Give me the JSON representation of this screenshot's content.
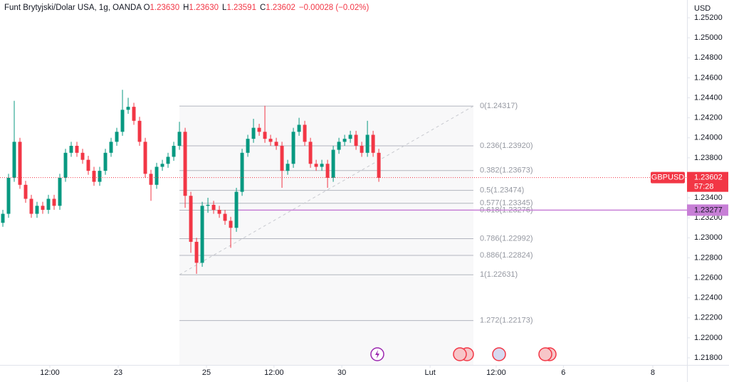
{
  "chart_data": {
    "type": "candlestick",
    "title": "Funt Brytyjski/Dolar USA, 1g, OANDA",
    "ohlc_header": [
      {
        "key": "O",
        "value": 1.2363,
        "label": "1.23630"
      },
      {
        "key": "H",
        "value": 1.2363,
        "label": "1.23630"
      },
      {
        "key": "L",
        "value": 1.23591,
        "label": "1.23591"
      },
      {
        "key": "C",
        "value": 1.23602,
        "label": "1.23602"
      }
    ],
    "change": {
      "value": -0.00028,
      "label": "−0.00028 (−0.02%)"
    },
    "currency": "USD",
    "symbol": "GBPUSD",
    "last_price": {
      "value": 1.23602,
      "label": "1.23602"
    },
    "countdown": "57:28",
    "horizontal_line": {
      "value": 1.23277,
      "label": "1.23277",
      "color": "#c77fd6"
    },
    "up_color": "#089981",
    "down_color": "#f23645",
    "open": [
      1.2315,
      1.2324,
      1.236,
      1.2396,
      1.2353,
      1.2339,
      1.2324,
      1.2332,
      1.2328,
      1.2339,
      1.2332,
      1.236,
      1.2385,
      1.2392,
      1.2385,
      1.2378,
      1.2367,
      1.2356,
      1.2367,
      1.2385,
      1.2396,
      1.2406,
      1.2428,
      1.2431,
      1.2417,
      1.2396,
      1.2364,
      1.2353,
      1.2371,
      1.2374,
      1.2381,
      1.2392,
      1.2406,
      1.2342,
      1.2296,
      1.2275,
      1.2332,
      1.2333,
      1.2328,
      1.2324,
      1.2317,
      1.231,
      1.2346,
      1.2385,
      1.2399,
      1.241,
      1.2406,
      1.2399,
      1.2396,
      1.2392,
      1.2367,
      1.2374,
      1.2406,
      1.2413,
      1.2396,
      1.2374,
      1.2371,
      1.2374,
      1.236,
      1.2388,
      1.2396,
      1.2399,
      1.2403,
      1.2392,
      1.2385,
      1.2403,
      1.2385
    ],
    "high": [
      1.2328,
      1.2364,
      1.2437,
      1.24,
      1.2357,
      1.2343,
      1.2336,
      1.2336,
      1.2343,
      1.2343,
      1.2364,
      1.2389,
      1.2396,
      1.2396,
      1.2389,
      1.2382,
      1.2371,
      1.2371,
      1.2389,
      1.24,
      1.241,
      1.2448,
      1.244,
      1.2435,
      1.2421,
      1.24,
      1.2368,
      1.2375,
      1.2378,
      1.2385,
      1.2396,
      1.2416,
      1.241,
      1.2346,
      1.23,
      1.2336,
      1.234,
      1.2337,
      1.2332,
      1.2328,
      1.2321,
      1.235,
      1.2389,
      1.2403,
      1.2419,
      1.2414,
      1.2432,
      1.2403,
      1.24,
      1.2396,
      1.2378,
      1.241,
      1.242,
      1.2417,
      1.24,
      1.2378,
      1.2378,
      1.2378,
      1.2392,
      1.24,
      1.2403,
      1.2407,
      1.2407,
      1.2396,
      1.2417,
      1.2407,
      1.2389
    ],
    "low": [
      1.2311,
      1.232,
      1.2356,
      1.2349,
      1.2335,
      1.232,
      1.232,
      1.2324,
      1.2324,
      1.2328,
      1.2328,
      1.2356,
      1.2381,
      1.2381,
      1.2374,
      1.2363,
      1.2352,
      1.2352,
      1.2363,
      1.2381,
      1.2392,
      1.2402,
      1.2424,
      1.2413,
      1.2392,
      1.236,
      1.2337,
      1.2349,
      1.2367,
      1.237,
      1.2377,
      1.2388,
      1.233,
      1.2285,
      1.2264,
      1.2271,
      1.2325,
      1.2324,
      1.232,
      1.2313,
      1.229,
      1.2306,
      1.2342,
      1.2381,
      1.2395,
      1.2402,
      1.2395,
      1.2392,
      1.2388,
      1.235,
      1.2363,
      1.237,
      1.2402,
      1.2392,
      1.237,
      1.2367,
      1.2367,
      1.235,
      1.2356,
      1.2384,
      1.2392,
      1.2395,
      1.2388,
      1.2381,
      1.2381,
      1.2381,
      1.2356
    ],
    "close": [
      1.2324,
      1.236,
      1.2396,
      1.2353,
      1.2339,
      1.2324,
      1.2332,
      1.2328,
      1.2339,
      1.2332,
      1.236,
      1.2385,
      1.2392,
      1.2385,
      1.2378,
      1.2367,
      1.2356,
      1.2367,
      1.2385,
      1.2396,
      1.2406,
      1.2428,
      1.2431,
      1.2417,
      1.2396,
      1.2364,
      1.2353,
      1.2371,
      1.2374,
      1.2381,
      1.2392,
      1.2406,
      1.2342,
      1.2296,
      1.2275,
      1.2332,
      1.2333,
      1.2328,
      1.2324,
      1.2317,
      1.231,
      1.2346,
      1.2385,
      1.2399,
      1.241,
      1.2406,
      1.2399,
      1.2396,
      1.2392,
      1.2367,
      1.2374,
      1.2406,
      1.2413,
      1.2396,
      1.2374,
      1.2371,
      1.2374,
      1.236,
      1.2388,
      1.2396,
      1.2399,
      1.2403,
      1.2392,
      1.2385,
      1.2403,
      1.2385,
      1.236
    ],
    "fib_levels": [
      {
        "value": 1.24317,
        "label": "0(1.24317)"
      },
      {
        "value": 1.2392,
        "label": "0.236(1.23920)"
      },
      {
        "value": 1.23673,
        "label": "0.382(1.23673)"
      },
      {
        "value": 1.23474,
        "label": "0.5(1.23474)"
      },
      {
        "value": 1.23345,
        "label": "0.577(1.23345)"
      },
      {
        "value": 1.23276,
        "label": "0.618(1.23276)"
      },
      {
        "value": 1.22992,
        "label": "0.786(1.22992)"
      },
      {
        "value": 1.22824,
        "label": "0.886(1.22824)"
      },
      {
        "value": 1.22631,
        "label": "1(1.22631)"
      },
      {
        "value": 1.22173,
        "label": "1.272(1.22173)"
      }
    ],
    "fib_x": [
      31,
      82.6
    ],
    "xlim": [
      -0.5,
      120.1
    ],
    "ylim": [
      1.21729,
      1.25378
    ],
    "xticks": [
      {
        "value": 8.25,
        "label": "12:00"
      },
      {
        "value": 20.25,
        "label": "23"
      },
      {
        "value": 35.75,
        "label": "25"
      },
      {
        "value": 47.6,
        "label": "12:00"
      },
      {
        "value": 59.5,
        "label": "30"
      },
      {
        "value": 75,
        "label": "Lut"
      },
      {
        "value": 86.6,
        "label": "12:00"
      },
      {
        "value": 98.4,
        "label": "6"
      },
      {
        "value": 114.1,
        "label": "8"
      }
    ],
    "yticks": [
      {
        "value": 1.252,
        "label": "1.25200"
      },
      {
        "value": 1.25,
        "label": "1.25000"
      },
      {
        "value": 1.248,
        "label": "1.24800"
      },
      {
        "value": 1.246,
        "label": "1.24600"
      },
      {
        "value": 1.244,
        "label": "1.24400"
      },
      {
        "value": 1.242,
        "label": "1.24200"
      },
      {
        "value": 1.24,
        "label": "1.24000"
      },
      {
        "value": 1.238,
        "label": "1.23800"
      },
      {
        "value": 1.234,
        "label": "1.23400"
      },
      {
        "value": 1.232,
        "label": "1.23200"
      },
      {
        "value": 1.23,
        "label": "1.23000"
      },
      {
        "value": 1.228,
        "label": "1.22800"
      },
      {
        "value": 1.226,
        "label": "1.22600"
      },
      {
        "value": 1.224,
        "label": "1.22400"
      },
      {
        "value": 1.222,
        "label": "1.22200"
      },
      {
        "value": 1.22,
        "label": "1.22000"
      },
      {
        "value": 1.218,
        "label": "1.21800"
      }
    ]
  }
}
